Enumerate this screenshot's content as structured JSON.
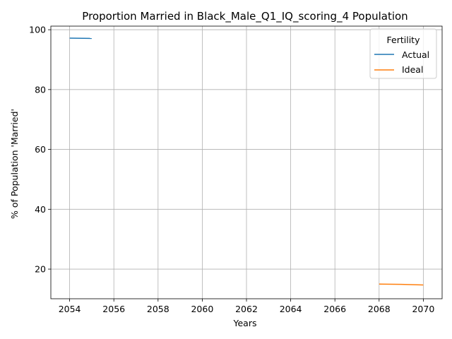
{
  "chart_data": {
    "type": "line",
    "title": "Proportion Married in Black_Male_Q1_IQ_scoring_4 Population",
    "xlabel": "Years",
    "ylabel": "% of Population 'Married'",
    "xlim": [
      2053.15,
      2070.85
    ],
    "ylim": [
      10.1,
      101.2
    ],
    "xticks": [
      2054,
      2056,
      2058,
      2060,
      2062,
      2064,
      2066,
      2068,
      2070
    ],
    "yticks": [
      20,
      40,
      60,
      80,
      100
    ],
    "grid": true,
    "legend": {
      "title": "Fertility",
      "position": "top-right"
    },
    "series": [
      {
        "name": "Actual",
        "color": "#1f77b4",
        "x": [
          2054,
          2055
        ],
        "y": [
          97.2,
          97.1
        ]
      },
      {
        "name": "Ideal",
        "color": "#ff7f0e",
        "x": [
          2068,
          2069,
          2070
        ],
        "y": [
          15.0,
          14.9,
          14.7
        ]
      }
    ]
  }
}
